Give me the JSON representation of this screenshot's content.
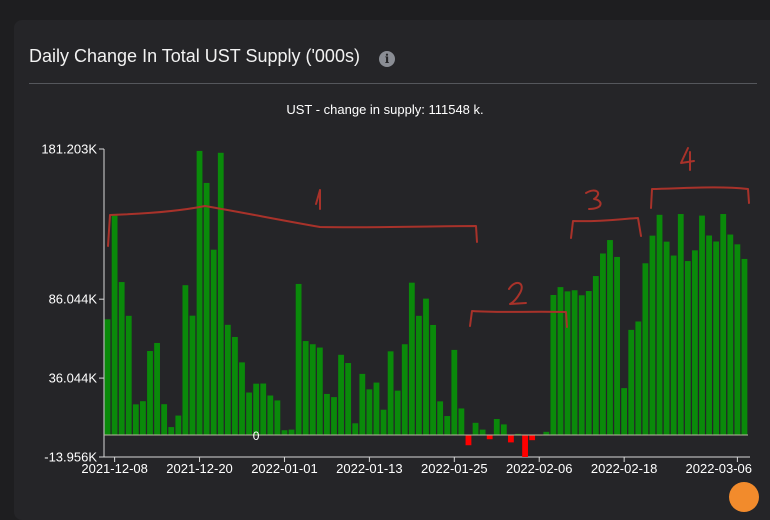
{
  "card": {
    "title": "Daily Change In Total UST Supply ('000s)",
    "info_icon": "info-icon"
  },
  "chart_data": {
    "type": "bar",
    "title": "UST - change in supply: 111548 k.",
    "y_ticks": [
      "181.203K",
      "86.044K",
      "36.044K",
      "-13.956K"
    ],
    "y_tick_values": [
      181203,
      86044,
      36044,
      -13956
    ],
    "ylim": [
      -13956,
      181203
    ],
    "x_ticks": [
      "2021-12-08",
      "2021-12-20",
      "2022-01-01",
      "2022-01-13",
      "2022-01-25",
      "2022-02-06",
      "2022-02-18",
      "2022-03-06"
    ],
    "x_tick_bar_index": [
      1,
      13,
      25,
      37,
      49,
      61,
      73,
      89
    ],
    "zero_label": "0",
    "colors": {
      "positive": "#0a8a0a",
      "negative": "#ff0000"
    },
    "values": [
      73300,
      140000,
      96900,
      75500,
      19400,
      21400,
      53200,
      58300,
      19500,
      5000,
      12300,
      94900,
      75600,
      180000,
      159700,
      117400,
      178800,
      69800,
      62100,
      46000,
      26900,
      32500,
      32600,
      25000,
      21900,
      3000,
      3400,
      95700,
      59500,
      57500,
      55400,
      26000,
      24000,
      50800,
      45600,
      7400,
      38700,
      28900,
      33200,
      16000,
      53000,
      28100,
      57500,
      96500,
      75500,
      86400,
      69700,
      21300,
      12000,
      53900,
      16800,
      -6500,
      7700,
      3400,
      -2700,
      10100,
      6700,
      -4700,
      700,
      -13956,
      -3300,
      -300,
      2000,
      88700,
      93700,
      91000,
      91700,
      88500,
      91200,
      100700,
      115000,
      123500,
      112800,
      29700,
      66600,
      71900,
      108800,
      126300,
      139500,
      122500,
      113700,
      140000,
      110200,
      117000,
      139000,
      126400,
      122600,
      140000,
      127000,
      120800,
      111548
    ],
    "annotations": [
      "1",
      "2",
      "3",
      "4"
    ],
    "annotation_color": "#a8322a"
  }
}
